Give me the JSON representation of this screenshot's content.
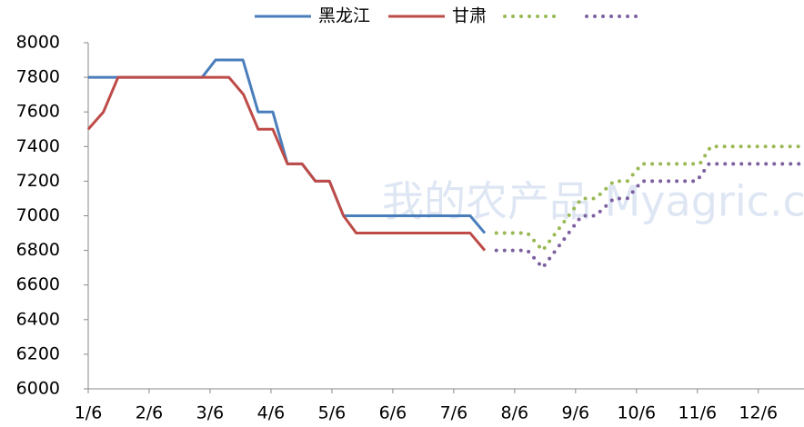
{
  "chart_data": {
    "type": "line",
    "watermark": "我的农产品 Myagric.com",
    "xlim": [
      0,
      11.75
    ],
    "xticks": [
      {
        "value": 0,
        "label": "1/6"
      },
      {
        "value": 1,
        "label": "2/6"
      },
      {
        "value": 2,
        "label": "3/6"
      },
      {
        "value": 3,
        "label": "4/6"
      },
      {
        "value": 4,
        "label": "5/6"
      },
      {
        "value": 5,
        "label": "6/6"
      },
      {
        "value": 6,
        "label": "7/6"
      },
      {
        "value": 7,
        "label": "8/6"
      },
      {
        "value": 8,
        "label": "9/6"
      },
      {
        "value": 9,
        "label": "10/6"
      },
      {
        "value": 10,
        "label": "11/6"
      },
      {
        "value": 11,
        "label": "12/6"
      }
    ],
    "ylim": [
      6000,
      8000
    ],
    "yticks": [
      6000,
      6200,
      6400,
      6600,
      6800,
      7000,
      7200,
      7400,
      7600,
      7800,
      8000
    ],
    "legend": "top",
    "series": [
      {
        "name": "黑龙江",
        "color": "#4a7ebb",
        "style": "solid",
        "x": [
          0,
          1.87,
          2.09,
          2.54,
          2.79,
          3.03,
          3.27,
          3.51,
          3.73,
          3.96,
          4.19,
          6.27,
          6.51
        ],
        "values": [
          7800,
          7800,
          7900,
          7900,
          7600,
          7600,
          7300,
          7300,
          7200,
          7200,
          7000,
          7000,
          6900
        ]
      },
      {
        "name": "甘肃",
        "color": "#be4b48",
        "style": "solid",
        "x": [
          0,
          0.25,
          0.49,
          2.31,
          2.55,
          2.79,
          3.03,
          3.27,
          3.51,
          3.73,
          3.96,
          4.19,
          4.4,
          6.27,
          6.51
        ],
        "values": [
          7500,
          7600,
          7800,
          7800,
          7700,
          7500,
          7500,
          7300,
          7300,
          7200,
          7200,
          7000,
          6900,
          6900,
          6800
        ]
      },
      {
        "color": "#98b954",
        "style": "dotted",
        "x": [
          6.7,
          7.21,
          7.46,
          8.1,
          8.33,
          8.63,
          8.85,
          9.09,
          10.04,
          10.22,
          11.75
        ],
        "values": [
          6900,
          6900,
          6800,
          7100,
          7100,
          7200,
          7200,
          7300,
          7300,
          7400,
          7400
        ]
      },
      {
        "color": "#7d60a0",
        "style": "dotted",
        "x": [
          6.7,
          7.21,
          7.46,
          8.1,
          8.33,
          8.63,
          8.85,
          9.09,
          9.99,
          10.19,
          11.75
        ],
        "values": [
          6800,
          6800,
          6700,
          7000,
          7000,
          7100,
          7100,
          7200,
          7200,
          7300,
          7300
        ]
      }
    ]
  }
}
